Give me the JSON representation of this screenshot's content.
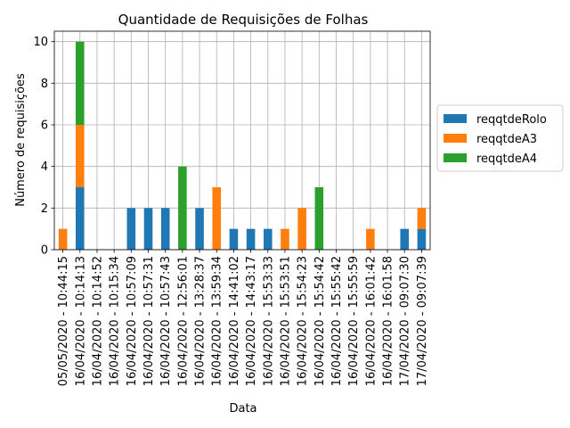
{
  "chart_data": {
    "type": "bar",
    "stacked": true,
    "title": "Quantidade de Requisições de Folhas",
    "xlabel": "Data",
    "ylabel": "Número de requisições",
    "ylim": [
      0,
      10.5
    ],
    "yticks": [
      0,
      2,
      4,
      6,
      8,
      10
    ],
    "grid": true,
    "legend_position": "right",
    "categories": [
      "05/05/2020 - 10:44:15",
      "16/04/2020 - 10:14:13",
      "16/04/2020 - 10:14:52",
      "16/04/2020 - 10:15:34",
      "16/04/2020 - 10:57:09",
      "16/04/2020 - 10:57:31",
      "16/04/2020 - 10:57:43",
      "16/04/2020 - 12:56:01",
      "16/04/2020 - 13:28:37",
      "16/04/2020 - 13:59:34",
      "16/04/2020 - 14:41:02",
      "16/04/2020 - 14:43:17",
      "16/04/2020 - 15:53:33",
      "16/04/2020 - 15:53:51",
      "16/04/2020 - 15:54:23",
      "16/04/2020 - 15:54:42",
      "16/04/2020 - 15:55:42",
      "16/04/2020 - 15:55:59",
      "16/04/2020 - 16:01:42",
      "16/04/2020 - 16:01:58",
      "17/04/2020 - 09:07:30",
      "17/04/2020 - 09:07:39"
    ],
    "series": [
      {
        "name": "reqqtdeRolo",
        "color": "#1f77b4",
        "values": [
          0,
          3,
          0,
          0,
          2,
          2,
          2,
          0,
          2,
          0,
          1,
          1,
          1,
          0,
          0,
          0,
          0,
          0,
          0,
          0,
          1,
          1
        ]
      },
      {
        "name": "reqqtdeA3",
        "color": "#ff7f0e",
        "values": [
          1,
          3,
          0,
          0,
          0,
          0,
          0,
          0,
          0,
          3,
          0,
          0,
          0,
          1,
          2,
          0,
          0,
          0,
          1,
          0,
          0,
          1
        ]
      },
      {
        "name": "reqqtdeA4",
        "color": "#2ca02c",
        "values": [
          0,
          4,
          0,
          0,
          0,
          0,
          0,
          4,
          0,
          0,
          0,
          0,
          0,
          0,
          0,
          3,
          0,
          0,
          0,
          0,
          0,
          0
        ]
      }
    ]
  }
}
